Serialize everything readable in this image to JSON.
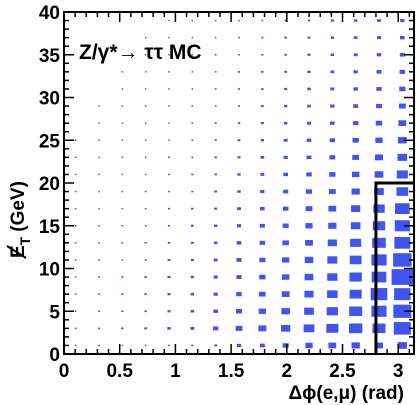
{
  "chart_data": {
    "type": "heatmap",
    "annotation": "Z/γ*→ ττ MC",
    "xlabel": "Δϕ(e,μ) (rad)",
    "ylabel_main": "E",
    "ylabel_sub": "T",
    "ylabel_unit": "(GeV)",
    "xlim": [
      0,
      3.1416
    ],
    "ylim": [
      0,
      40
    ],
    "x_ticks": [
      {
        "value": 0,
        "label": "0"
      },
      {
        "value": 0.5,
        "label": "0.5"
      },
      {
        "value": 1,
        "label": "1"
      },
      {
        "value": 1.5,
        "label": "1.5"
      },
      {
        "value": 2,
        "label": "2"
      },
      {
        "value": 2.5,
        "label": "2.5"
      },
      {
        "value": 3,
        "label": "3"
      }
    ],
    "y_ticks": [
      {
        "value": 0,
        "label": "0"
      },
      {
        "value": 5,
        "label": "5"
      },
      {
        "value": 10,
        "label": "10"
      },
      {
        "value": 15,
        "label": "15"
      },
      {
        "value": 20,
        "label": "20"
      },
      {
        "value": 25,
        "label": "25"
      },
      {
        "value": 30,
        "label": "30"
      },
      {
        "value": 35,
        "label": "35"
      },
      {
        "value": 40,
        "label": "40"
      }
    ],
    "bins": {
      "x_count": 15,
      "y_count": 20,
      "fill_color": "#4055ee",
      "values": [
        [
          1,
          1,
          1,
          1,
          2,
          3,
          5,
          12,
          16,
          24,
          35,
          40,
          45,
          42,
          55
        ],
        [
          2,
          3,
          4,
          5,
          8,
          10,
          18,
          30,
          42,
          55,
          75,
          95,
          115,
          110,
          190
        ],
        [
          2,
          2,
          3,
          4,
          6,
          8,
          14,
          24,
          34,
          48,
          62,
          82,
          110,
          150,
          210
        ],
        [
          2,
          2,
          3,
          4,
          6,
          8,
          12,
          20,
          28,
          40,
          55,
          72,
          95,
          180,
          175
        ],
        [
          1,
          2,
          3,
          4,
          6,
          7,
          11,
          18,
          26,
          36,
          50,
          68,
          100,
          140,
          300
        ],
        [
          1,
          2,
          2,
          3,
          5,
          6,
          10,
          17,
          24,
          34,
          48,
          65,
          90,
          150,
          220
        ],
        [
          1,
          1,
          2,
          3,
          4,
          5,
          8,
          14,
          20,
          28,
          40,
          55,
          80,
          120,
          165
        ],
        [
          1,
          1,
          2,
          2,
          3,
          5,
          7,
          12,
          17,
          24,
          34,
          45,
          60,
          100,
          150
        ],
        [
          1,
          1,
          1,
          2,
          3,
          4,
          6,
          10,
          14,
          20,
          30,
          40,
          55,
          85,
          140
        ],
        [
          1,
          1,
          1,
          2,
          2,
          3,
          5,
          8,
          12,
          17,
          24,
          30,
          45,
          60,
          90
        ],
        [
          1,
          1,
          1,
          1,
          2,
          3,
          4,
          7,
          10,
          14,
          20,
          26,
          36,
          50,
          80
        ],
        [
          1,
          1,
          1,
          1,
          2,
          2,
          4,
          6,
          9,
          12,
          16,
          22,
          30,
          42,
          60
        ],
        [
          1,
          1,
          1,
          1,
          1,
          2,
          3,
          5,
          7,
          10,
          14,
          18,
          26,
          35,
          50
        ],
        [
          0,
          1,
          1,
          1,
          1,
          2,
          3,
          4,
          6,
          8,
          11,
          14,
          20,
          28,
          40
        ],
        [
          0,
          1,
          1,
          1,
          1,
          2,
          2,
          3,
          5,
          7,
          9,
          12,
          16,
          22,
          30
        ],
        [
          0,
          0,
          1,
          1,
          1,
          1,
          2,
          3,
          4,
          6,
          8,
          10,
          13,
          18,
          25
        ],
        [
          0,
          0,
          1,
          1,
          1,
          1,
          2,
          3,
          4,
          5,
          7,
          9,
          12,
          16,
          20
        ],
        [
          0,
          0,
          0,
          1,
          1,
          1,
          2,
          2,
          3,
          4,
          6,
          8,
          10,
          13,
          17
        ],
        [
          0,
          0,
          0,
          1,
          1,
          1,
          1,
          2,
          3,
          4,
          5,
          7,
          9,
          11,
          14
        ],
        [
          0,
          0,
          0,
          0,
          1,
          1,
          1,
          2,
          2,
          3,
          4,
          6,
          7,
          9,
          12
        ]
      ]
    },
    "box_region": {
      "x_min": 2.8,
      "x_max": 3.1416,
      "y_min": 0,
      "y_max": 20,
      "color": "#000000"
    }
  }
}
